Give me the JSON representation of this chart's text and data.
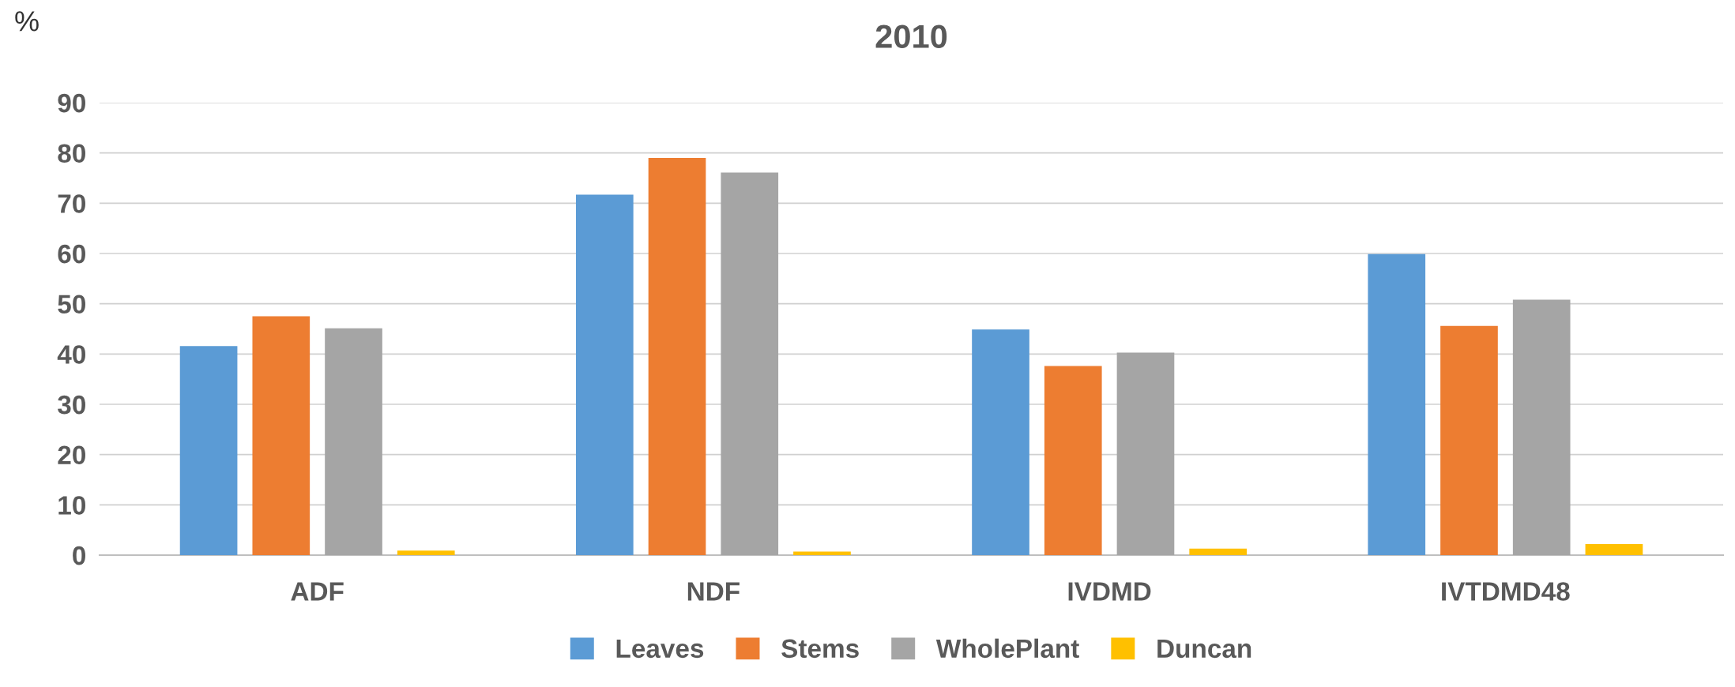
{
  "chart_data": {
    "type": "bar",
    "title": "2010",
    "ylabel": "%",
    "categories": [
      "ADF",
      "NDF",
      "IVDMD",
      "IVTDMD48"
    ],
    "series": [
      {
        "name": "Leaves",
        "color": "#5b9bd5",
        "values": [
          41.6,
          71.7,
          44.9,
          59.9
        ]
      },
      {
        "name": "Stems",
        "color": "#ed7d31",
        "values": [
          47.5,
          79.0,
          37.6,
          45.6
        ]
      },
      {
        "name": "WholePlant",
        "color": "#a5a5a5",
        "values": [
          45.1,
          76.1,
          40.3,
          50.8
        ]
      },
      {
        "name": "Duncan",
        "color": "#ffc000",
        "values": [
          0.9,
          0.7,
          1.3,
          2.2
        ]
      }
    ],
    "ylim": [
      0,
      90
    ],
    "yticks": [
      0,
      10,
      20,
      30,
      40,
      50,
      60,
      70,
      80,
      90
    ],
    "grid": "y",
    "legend": "bottom"
  }
}
